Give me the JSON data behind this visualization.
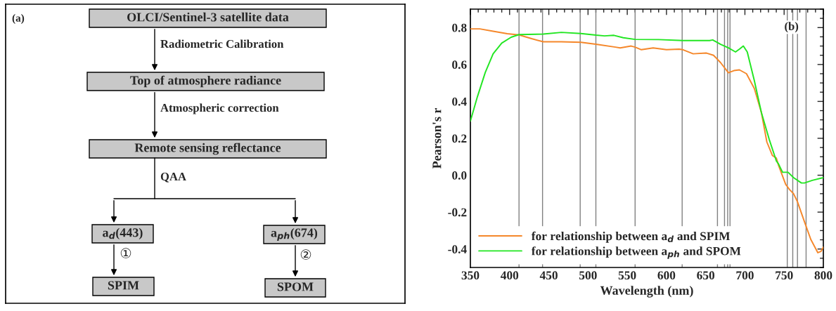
{
  "chart_data": [
    {
      "type": "other",
      "title": "(a)",
      "categories": [
        "OLCI/Sentinel-3 satellite data",
        "Top of atmosphere radiance",
        "Remote sensing reflectance",
        "a$_{d}$(443)",
        "a$_{ph}$(674)",
        "SPIM",
        "SPOM"
      ],
      "annotations": [
        "Radiometric Calibration",
        "Atmospheric correction",
        "QAA",
        "①",
        "②"
      ]
    },
    {
      "type": "line",
      "title": "(b)",
      "xlabel": "Wavelength (nm)",
      "ylabel": "Pearson's r",
      "xlim": [
        350,
        800
      ],
      "xticks": [
        350,
        400,
        450,
        500,
        550,
        600,
        650,
        700,
        750,
        800
      ],
      "ylim": [
        -0.5,
        0.9
      ],
      "yticks": [
        {
          "value": -0.4,
          "label": "-0.4"
        },
        {
          "value": -0.2,
          "label": "-0.2"
        },
        {
          "value": 0.0,
          "label": "0.0"
        },
        0.2,
        0.4,
        0.6,
        0.8
      ],
      "grid": false,
      "legend": "bottom left",
      "series": [
        {
          "name": "for relationship between a$_{d}$ and SPIM",
          "color": "#f5872a",
          "x": [
            350,
            362,
            379,
            397,
            412,
            428,
            443,
            466,
            491,
            510,
            535,
            541,
            555,
            560,
            568,
            583,
            600,
            616,
            621,
            634,
            651,
            660,
            669,
            679,
            686,
            693,
            702,
            712,
            721,
            728,
            735,
            740,
            743,
            752,
            757,
            762,
            767,
            776,
            784,
            793,
            797,
            800
          ],
          "values": [
            0.793,
            0.793,
            0.78,
            0.767,
            0.76,
            0.74,
            0.723,
            0.723,
            0.72,
            0.71,
            0.694,
            0.69,
            0.7,
            0.694,
            0.68,
            0.69,
            0.68,
            0.683,
            0.68,
            0.658,
            0.662,
            0.65,
            0.61,
            0.555,
            0.567,
            0.571,
            0.55,
            0.47,
            0.34,
            0.18,
            0.107,
            0.093,
            0.052,
            -0.05,
            -0.078,
            -0.1,
            -0.144,
            -0.253,
            -0.348,
            -0.42,
            -0.413,
            -0.39
          ]
        },
        {
          "name": "for relationship between a$_{ph}$ and SPOM",
          "color": "#22e622",
          "x": [
            350,
            359,
            369,
            379,
            390,
            402,
            412,
            443,
            466,
            491,
            510,
            521,
            533,
            545,
            560,
            590,
            621,
            655,
            659,
            669,
            679,
            688,
            693,
            698,
            703,
            712,
            721,
            731,
            740,
            743,
            748,
            755,
            762,
            772,
            776,
            786,
            800
          ],
          "values": [
            0.293,
            0.426,
            0.557,
            0.658,
            0.716,
            0.748,
            0.762,
            0.765,
            0.774,
            0.768,
            0.759,
            0.755,
            0.758,
            0.745,
            0.736,
            0.735,
            0.73,
            0.73,
            0.733,
            0.709,
            0.69,
            0.668,
            0.683,
            0.7,
            0.668,
            0.513,
            0.34,
            0.194,
            0.078,
            0.06,
            0.016,
            0.016,
            -0.013,
            -0.042,
            -0.042,
            -0.028,
            -0.013
          ]
        }
      ],
      "ref_lines": [
        {
          "axis": "x",
          "value": 412,
          "color": "#808080"
        },
        {
          "axis": "x",
          "value": 442,
          "color": "#808080"
        },
        {
          "axis": "x",
          "value": 490,
          "color": "#808080"
        },
        {
          "axis": "x",
          "value": 510,
          "color": "#808080"
        },
        {
          "axis": "x",
          "value": 560,
          "color": "#808080"
        },
        {
          "axis": "x",
          "value": 620,
          "color": "#808080"
        },
        {
          "axis": "x",
          "value": 665,
          "color": "#808080"
        },
        {
          "axis": "x",
          "value": 674,
          "color": "#808080"
        },
        {
          "axis": "x",
          "value": 678,
          "color": "#808080"
        },
        {
          "axis": "x",
          "value": 681,
          "color": "#808080"
        },
        {
          "axis": "x",
          "value": 754,
          "color": "#808080"
        },
        {
          "axis": "x",
          "value": 761,
          "color": "#808080"
        },
        {
          "axis": "x",
          "value": 767,
          "color": "#808080"
        },
        {
          "axis": "x",
          "value": 778,
          "color": "#808080"
        }
      ]
    }
  ]
}
